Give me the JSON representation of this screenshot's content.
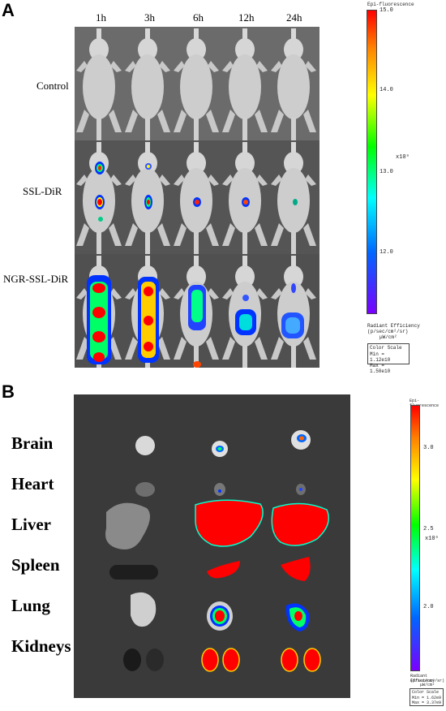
{
  "panel_a": {
    "letter": "A",
    "timepoints": [
      "1h",
      "3h",
      "6h",
      "12h",
      "24h"
    ],
    "rows": [
      "Control",
      "SSL-DiR",
      "NGR-SSL-DiR"
    ],
    "colorbar": {
      "title": "Epi-fluorescence",
      "max_label": "15.0",
      "ticks": [
        "14.0",
        "13.0",
        "12.0"
      ],
      "exponent": "x10⁹",
      "unit_line1": "Radiant Efficiency",
      "unit_line2": "(p/sec/cm²/sr)",
      "unit_line3": "µW/cm²",
      "scale_title": "Color Scale",
      "scale_min": "Min = 1.12e10",
      "scale_max": "Max = 1.50e10"
    }
  },
  "panel_b": {
    "letter": "B",
    "organs": [
      "Brain",
      "Heart",
      "Liver",
      "Spleen",
      "Lung",
      "Kidneys"
    ],
    "colorbar": {
      "title": "Epi-fluorescence",
      "ticks": [
        "3.0",
        "2.5",
        "2.0"
      ],
      "exponent": "x10⁹",
      "unit_line1": "Radiant Efficiency",
      "unit_line2": "(p/sec/cm²/sr)",
      "unit_line3": "µW/cm²",
      "scale_title": "Color Scale",
      "scale_min": "Min = 1.62e9",
      "scale_max": "Max = 3.37e9"
    }
  }
}
